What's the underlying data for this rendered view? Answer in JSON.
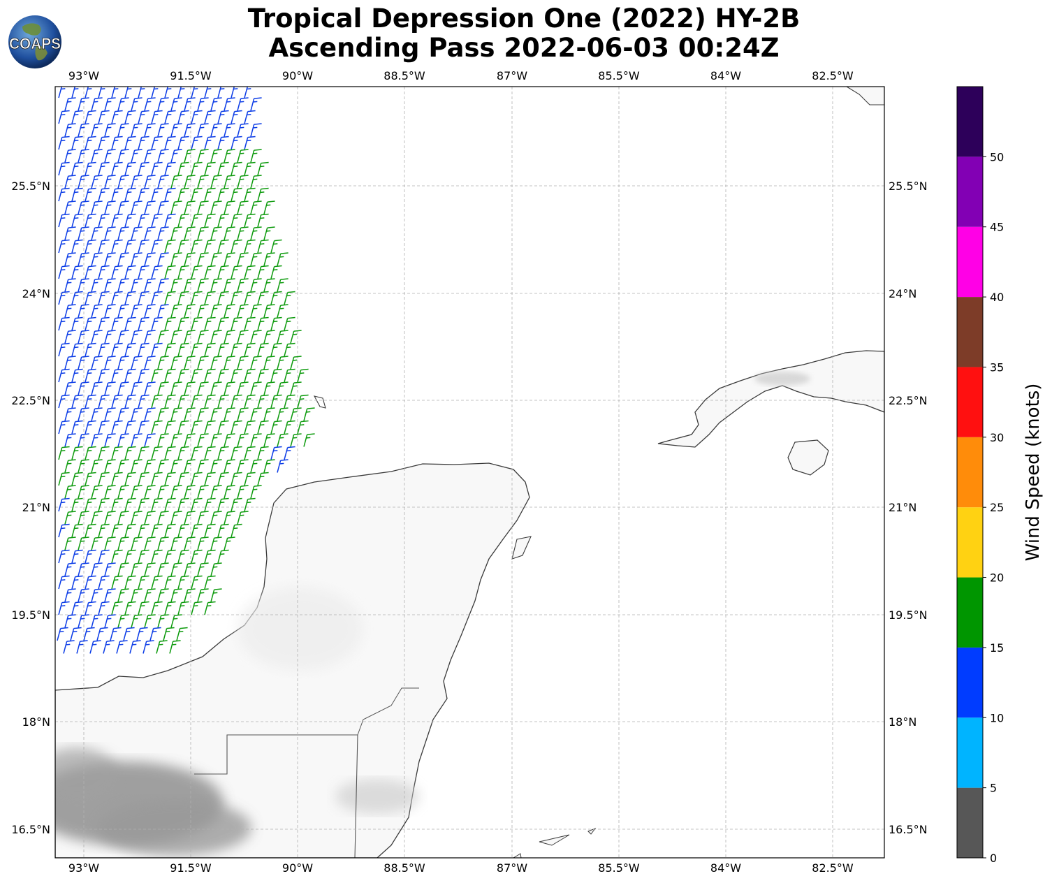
{
  "header": {
    "title_line1": "Tropical Depression One (2022) HY-2B",
    "title_line2": "Ascending Pass 2022-06-03 00:24Z"
  },
  "logo": {
    "text": "COAPS",
    "icon": "globe-logo-icon"
  },
  "map": {
    "lon_labels": [
      "93°W",
      "91.5°W",
      "90°W",
      "88.5°W",
      "87°W",
      "85.5°W",
      "84°W",
      "82.5°W"
    ],
    "lat_labels": [
      "25.5°N",
      "24°N",
      "22.5°N",
      "21°N",
      "19.5°N",
      "18°N",
      "16.5°N"
    ],
    "barb_colors": {
      "blue": "#0a3be6",
      "green": "#0c9a0c"
    },
    "wind_barbs": {
      "description_units": "knots",
      "green_range_knots": [
        15,
        20
      ],
      "blue_range_knots": [
        10,
        15
      ]
    }
  },
  "colorbar": {
    "title": "Wind Speed (knots)",
    "tick_labels": [
      "0",
      "5",
      "10",
      "15",
      "20",
      "25",
      "30",
      "35",
      "40",
      "45",
      "50"
    ],
    "bins": [
      {
        "min": 0,
        "max": 5,
        "color": "#575757"
      },
      {
        "min": 5,
        "max": 10,
        "color": "#00b4ff"
      },
      {
        "min": 10,
        "max": 15,
        "color": "#003cff"
      },
      {
        "min": 15,
        "max": 20,
        "color": "#009600"
      },
      {
        "min": 20,
        "max": 25,
        "color": "#ffd212"
      },
      {
        "min": 25,
        "max": 30,
        "color": "#ff8c0a"
      },
      {
        "min": 30,
        "max": 35,
        "color": "#ff1010"
      },
      {
        "min": 35,
        "max": 40,
        "color": "#7d3c28"
      },
      {
        "min": 40,
        "max": 45,
        "color": "#ff00e6"
      },
      {
        "min": 45,
        "max": 50,
        "color": "#8200b4"
      },
      {
        "min": 50,
        "max": 55,
        "color": "#2d005a"
      }
    ]
  }
}
